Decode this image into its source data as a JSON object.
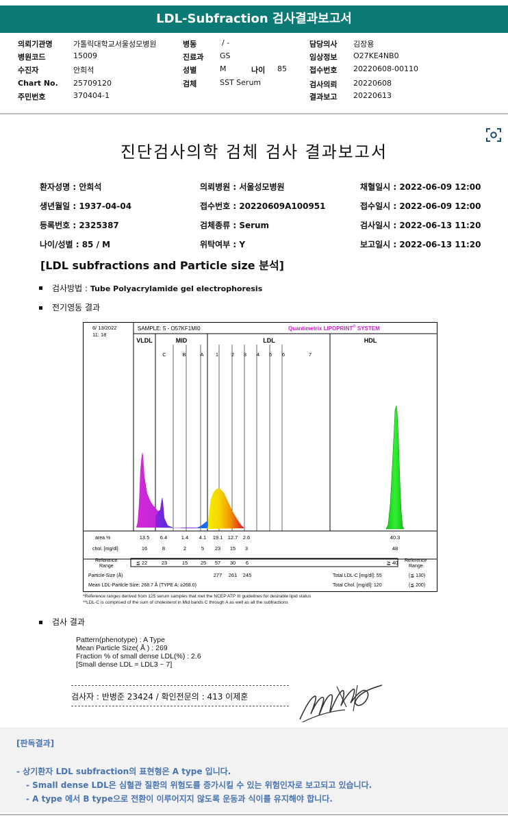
{
  "header": {
    "title": "LDL-Subfraction 검사결과보고서"
  },
  "info": {
    "institution_label": "의뢰기관명",
    "institution": "가톨릭대학교서울성모병원",
    "hospital_code_label": "병원코드",
    "hospital_code": "15009",
    "recipient_label": "수진자",
    "recipient": "안희석",
    "chart_no_label": "Chart No.",
    "chart_no": "25709120",
    "resident_no_label": "주민번호",
    "resident_no": "370404-1",
    "ward_label": "병동",
    "ward": "/ -",
    "department_label": "진료과",
    "department": "GS",
    "sex_label": "성별",
    "sex": "M",
    "age_label": "나이",
    "age": "85",
    "specimen_label": "검체",
    "specimen": "SST Serum",
    "doctor_label": "담당의사",
    "doctor": "김장용",
    "clinical_label": "임상정보",
    "clinical": "O27KE4NB0",
    "receipt_label": "접수번호",
    "receipt": "20220608-00110",
    "request_date_label": "검사의뢰",
    "request_date": "20220608",
    "report_date_label": "결과보고",
    "report_date": "20220613"
  },
  "report": {
    "title": "진단검사의학 검체 검사 결과보고서",
    "patient_name": "환자성명 : 안희석",
    "birth": "생년월일 : 1937-04-04",
    "reg_no": "등록번호 : 2325387",
    "age_sex": "나이/성별 : 85 / M",
    "requesting_hospital": "의뢰병원 : 서울성모병원",
    "receipt_no": "접수번호 : 20220609A100951",
    "specimen_type": "검체종류 : Serum",
    "consigned": "위탁여부 : Y",
    "collected": "채혈일시 : 2022-06-09 12:00",
    "received": "접수일시 : 2022-06-09 12:00",
    "tested": "검사일시 : 2022-06-13 11:20",
    "reported": "보고일시 : 2022-06-13 11:20",
    "section_heading": "[LDL subfractions and Particle size 분석]",
    "method_label": "검사방법 :",
    "method_value": "Tube Polyacrylamide gel electrophoresis",
    "electro_label": "전기영동 결과",
    "result_label": "검사 결과"
  },
  "gel": {
    "date": "6/ 13/2022",
    "time": "11: 18",
    "sample": "SAMPLE:   5 - O57KF1MI0",
    "brand": "Quantimetrix LIPOPRINT",
    "brand_reg": "®",
    "brand_system": " SYSTEM",
    "band_groups": [
      "VLDL",
      "MID",
      "LDL",
      "HDL"
    ],
    "band_labels": [
      "C",
      "B",
      "A",
      "1",
      "2",
      "3",
      "4",
      "5",
      "6",
      "7"
    ],
    "area_label": "area.%",
    "chol_label": "chol. [mg/dl]",
    "ref_label_1": "Reference",
    "ref_label_2": "Range",
    "area_values": [
      "13.5",
      "6.4",
      "1.4",
      "4.1",
      "19.1",
      "12.7",
      "2.6",
      "40.3"
    ],
    "chol_values": [
      "16",
      "8",
      "2",
      "5",
      "23",
      "15",
      "3",
      "48"
    ],
    "ref_values": [
      "≦ 22",
      "23",
      "15",
      "25",
      "57",
      "30",
      "6",
      "≧ 40"
    ],
    "particle_size_label": "Particle-Size (Å)",
    "particle_values": [
      "277",
      "261",
      "245"
    ],
    "mean_size": "Mean LDL-Particle Size:   268.7 Å   (TYPE A; ≥268.0)",
    "total_ldl": "Total LDL-C [mg/dl]:  55",
    "total_ldl_ref": "(≦ 130)",
    "total_chol": "Total Chol. [mg/dl]:  120",
    "total_chol_ref": "(≦ 200)",
    "note1": "*Reference ranges derived from 125 serum samples that met the NCEP ATP III guidelines for desirable lipid status",
    "note2": "**LDL-C is comprised of the sum of cholesterol in Mid bands C through A as well as all the subfractions",
    "colors": {
      "vldl": "#c21fd8",
      "mid_c": "#a21ce6",
      "mid_b": "#2a4ad8",
      "mid_a": "#1a6ee8",
      "ldl1": "#f0e000",
      "ldl2": "#f2a800",
      "ldl3": "#e8281e",
      "hdl": "#22dd22"
    }
  },
  "result": {
    "line1": "Pattern(phenotype) : A Type",
    "line2": "Mean Particle Size( Å ) : 269",
    "line3": "Fraction % of small dense LDL(%) : 2.6",
    "line4": "[Small dense LDL = LDL3 ~ 7]",
    "tester": "검사자 : 반병준  23424  /  확인전문의 : 413  이제훈"
  },
  "verdict": {
    "heading": "[판독결과]",
    "line1": "- 상기환자 LDL subfraction의 표현형은 A type 입니다.",
    "line2": "-  Small dense LDL은 심혈관 질환의 위험도를 증가시킬 수 있는 위험인자로 보고되고 있습니다.",
    "line3": "-  A type 에서 B type으로 전환이 이루어지지 않도록 운동과 식이를 유지해야 합니다."
  }
}
